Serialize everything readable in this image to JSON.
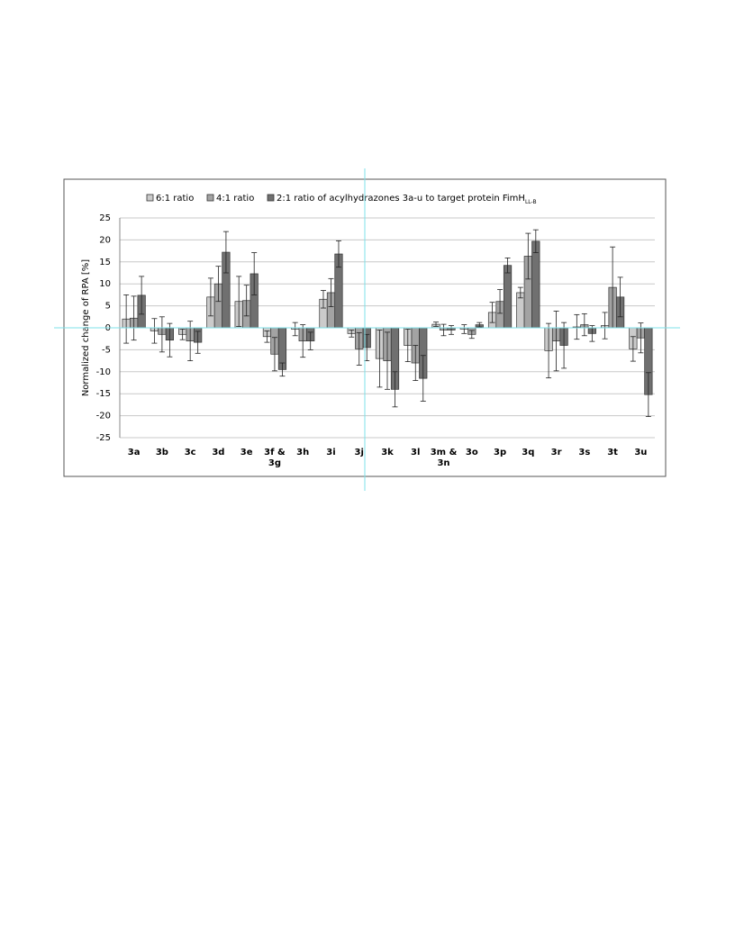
{
  "chart_data": {
    "type": "bar",
    "y_label": "Normalized change of RPA [%]",
    "categories": [
      "3a",
      "3b",
      "3c",
      "3d",
      "3e",
      "3f & 3g",
      "3h",
      "3i",
      "3j",
      "3k",
      "3l",
      "3m & 3n",
      "3o",
      "3p",
      "3q",
      "3r",
      "3s",
      "3t",
      "3u"
    ],
    "series": [
      {
        "name": "6:1 ratio",
        "color": "#cbcbcb",
        "values": [
          2,
          -0.7,
          -1.5,
          7,
          6,
          -2,
          -0.3,
          6.5,
          -1.3,
          -7,
          -4,
          0.8,
          -0.3,
          3.5,
          8,
          -5.2,
          0.2,
          0.5,
          -4.8
        ],
        "errors": [
          5.5,
          2.8,
          1.2,
          4.3,
          5.7,
          1.3,
          1.5,
          2,
          0.8,
          6.5,
          3.7,
          0.5,
          1,
          2.3,
          1.2,
          6.2,
          2.8,
          3,
          2.8
        ]
      },
      {
        "name": "4:1 ratio",
        "color": "#a3a3a3",
        "values": [
          2.2,
          -1.5,
          -3,
          10,
          6.2,
          -6,
          -3,
          8,
          -4.8,
          -7.5,
          -8,
          -0.5,
          -1.5,
          6,
          16.3,
          -3,
          0.7,
          9.2,
          -2.3
        ],
        "errors": [
          5,
          4,
          4.5,
          4,
          3.5,
          3.8,
          3.7,
          3.2,
          3.7,
          6.5,
          4,
          1.3,
          0.9,
          2.7,
          5.2,
          6.8,
          2.5,
          9.2,
          3.4
        ]
      },
      {
        "name": "2:1 ratio of acylhydrazones 3a-u to target protein FimH",
        "name_subscript": "LL-B",
        "color": "#707070",
        "values": [
          7.4,
          -2.8,
          -3.3,
          17.2,
          12.3,
          -9.5,
          -3,
          16.8,
          -4.5,
          -14,
          -11.5,
          -0.5,
          0.7,
          14.2,
          19.7,
          -4,
          -1.3,
          7,
          -15.2
        ],
        "errors": [
          4.3,
          3.8,
          2.5,
          4.7,
          4.8,
          1.5,
          2,
          3,
          3,
          4,
          5.2,
          1,
          0.5,
          1.7,
          2.6,
          5.2,
          1.8,
          4.5,
          5
        ]
      }
    ],
    "ylim": [
      -25,
      25
    ],
    "yticks": [
      -25,
      -20,
      -15,
      -10,
      -5,
      0,
      5,
      10,
      15,
      20,
      25
    ],
    "grid": true
  }
}
